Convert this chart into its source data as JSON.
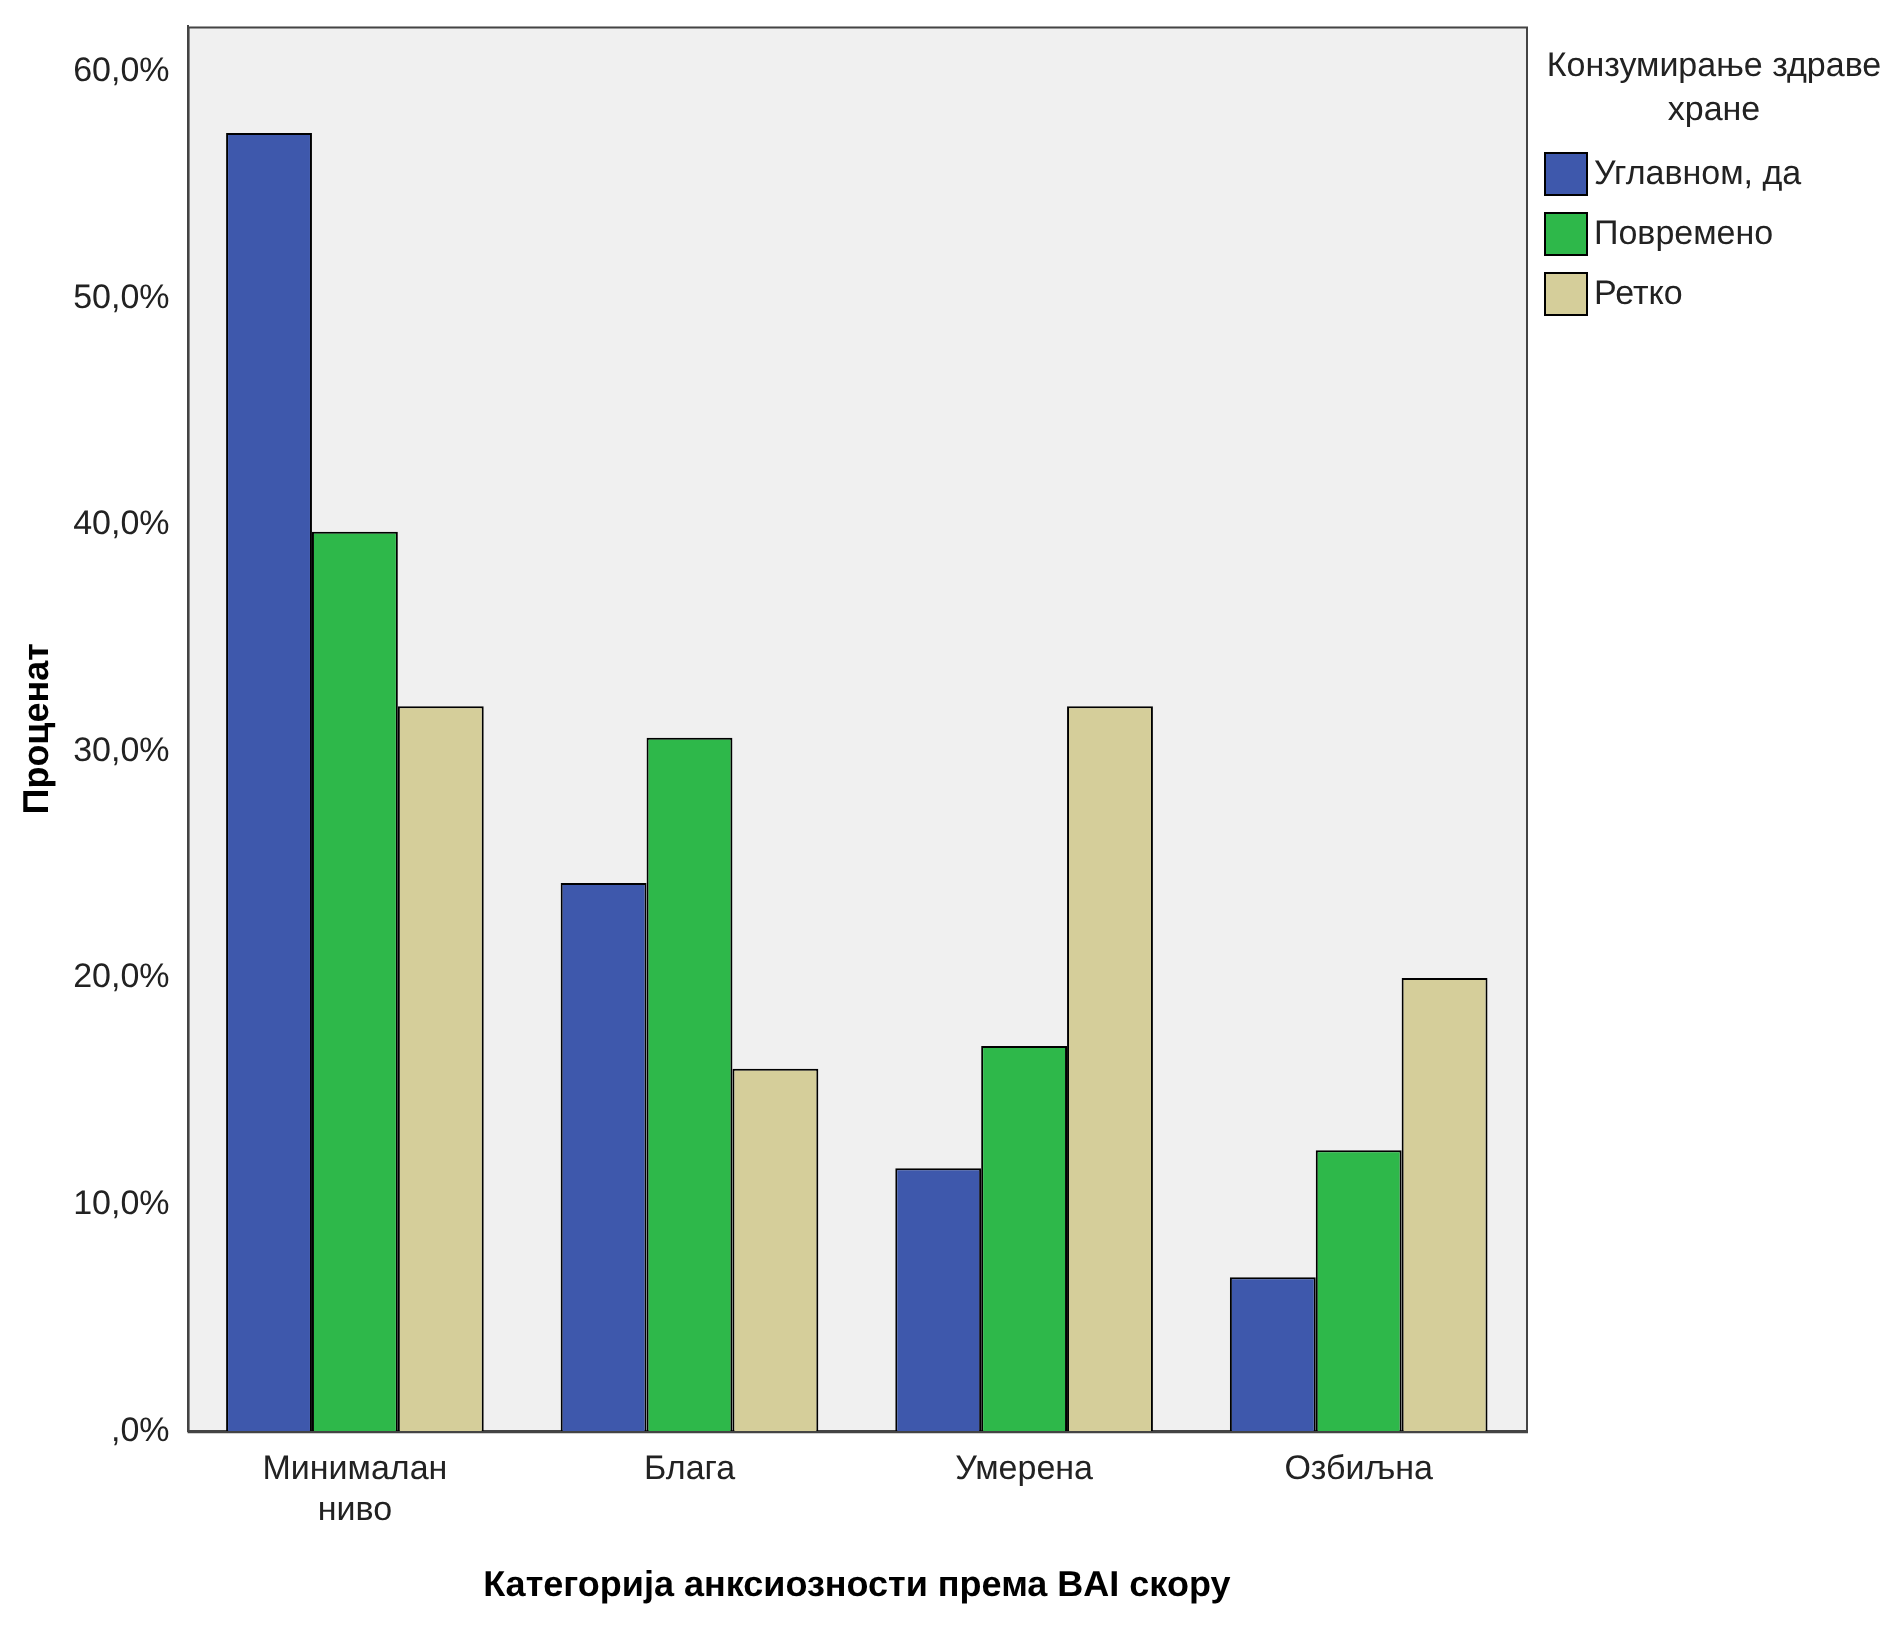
{
  "chart_data": {
    "type": "bar",
    "xlabel": "Категорија анксиозности према BAI скору",
    "ylabel": "Проценат",
    "legend_title": "Конзумирање здраве хране",
    "categories": [
      "Минималан ниво",
      "Блага",
      "Умерена",
      "Озбиљна"
    ],
    "series": [
      {
        "name": "Углавном, да",
        "color": "#3e58ac",
        "values": [
          57.3,
          24.2,
          11.6,
          6.8
        ]
      },
      {
        "name": "Повремено",
        "color": "#2eb84a",
        "values": [
          39.7,
          30.6,
          17.0,
          12.4
        ]
      },
      {
        "name": "Ретко",
        "color": "#d5ce9a",
        "values": [
          32.0,
          16.0,
          32.0,
          20.0
        ]
      }
    ],
    "ylim": [
      0,
      62
    ],
    "yticks": [
      {
        "value": 0,
        "label": ",0%"
      },
      {
        "value": 10,
        "label": "10,0%"
      },
      {
        "value": 20,
        "label": "20,0%"
      },
      {
        "value": 30,
        "label": "30,0%"
      },
      {
        "value": 40,
        "label": "40,0%"
      },
      {
        "value": 50,
        "label": "50,0%"
      },
      {
        "value": 60,
        "label": "60,0%"
      }
    ],
    "grid": false,
    "legend": "right"
  }
}
